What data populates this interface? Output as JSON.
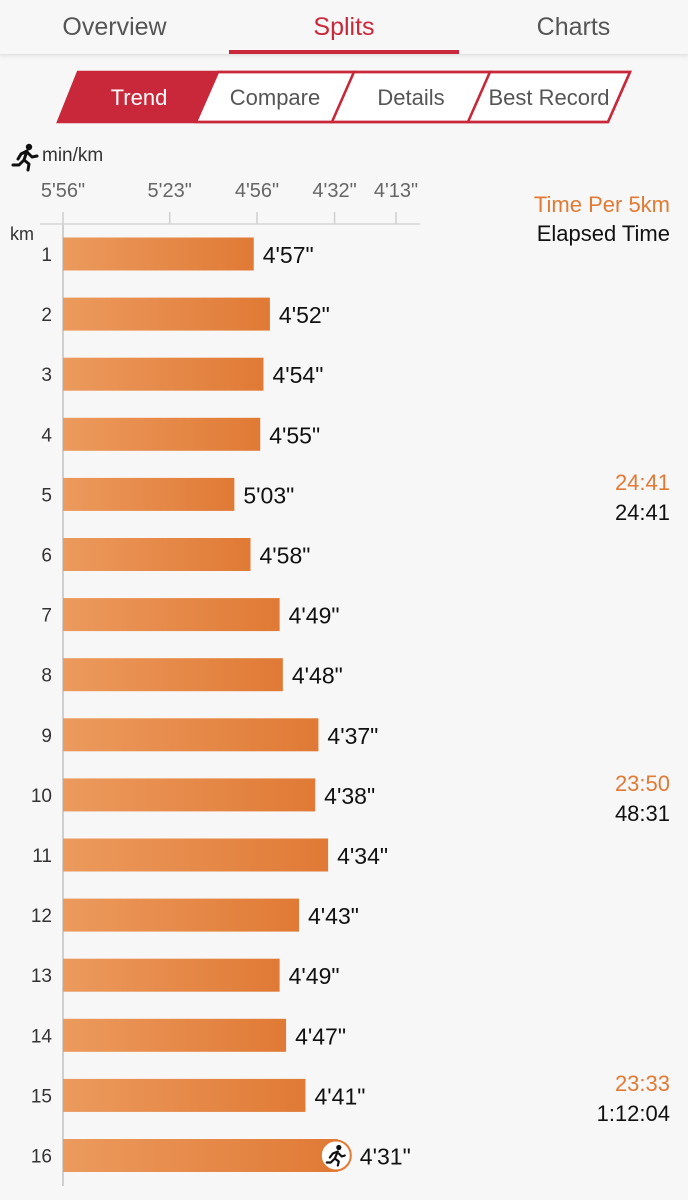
{
  "tabs": {
    "items": [
      {
        "label": "Overview"
      },
      {
        "label": "Splits"
      },
      {
        "label": "Charts"
      }
    ],
    "active": "Splits"
  },
  "subtabs": {
    "items": [
      {
        "label": "Trend"
      },
      {
        "label": "Compare"
      },
      {
        "label": "Details"
      },
      {
        "label": "Best Record"
      }
    ],
    "active": "Trend"
  },
  "colors": {
    "accent_red": "#c8283a",
    "bar_orange": "#e07a35",
    "bar_light": "#ec9a5e"
  },
  "chart_data": {
    "type": "bar",
    "orientation": "horizontal",
    "x_unit_label": "min/km",
    "y_axis_label": "km",
    "x_ticks": [
      "5'56\"",
      "5'23\"",
      "4'56\"",
      "4'32\"",
      "4'13\""
    ],
    "x_tick_seconds": [
      356,
      323,
      296,
      272,
      253
    ],
    "xlim_seconds": [
      356,
      253
    ],
    "categories": [
      "1",
      "2",
      "3",
      "4",
      "5",
      "6",
      "7",
      "8",
      "9",
      "10",
      "11",
      "12",
      "13",
      "14",
      "15",
      "16"
    ],
    "pace_labels": [
      "4'57\"",
      "4'52\"",
      "4'54\"",
      "4'55\"",
      "5'03\"",
      "4'58\"",
      "4'49\"",
      "4'48\"",
      "4'37\"",
      "4'38\"",
      "4'34\"",
      "4'43\"",
      "4'49\"",
      "4'47\"",
      "4'41\"",
      "4'31\""
    ],
    "pace_seconds": [
      297,
      292,
      294,
      295,
      303,
      298,
      289,
      288,
      277,
      278,
      274,
      283,
      289,
      287,
      281,
      271
    ],
    "legend": {
      "time_per_5km": "Time Per 5km",
      "elapsed_time": "Elapsed Time"
    },
    "checkpoints": [
      {
        "km": "5",
        "time_per_5km": "24:41",
        "elapsed": "24:41"
      },
      {
        "km": "10",
        "time_per_5km": "23:50",
        "elapsed": "48:31"
      },
      {
        "km": "15",
        "time_per_5km": "23:33",
        "elapsed": "1:12:04"
      }
    ],
    "last_marker_icon": "runner-icon",
    "header_icon": "runner-icon"
  }
}
